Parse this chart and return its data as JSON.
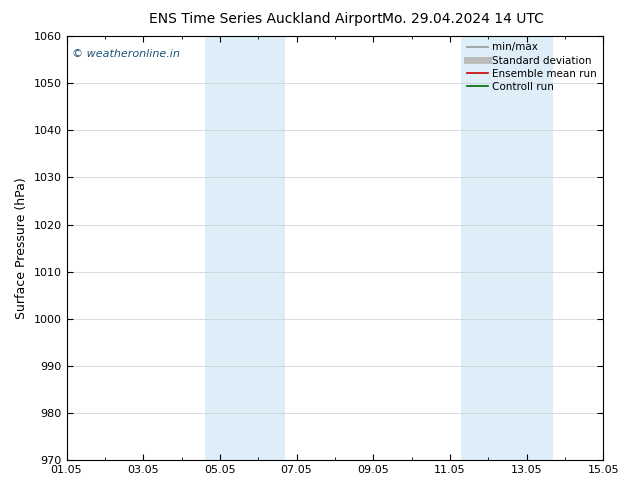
{
  "title_left": "ENS Time Series Auckland Airport",
  "title_right": "Mo. 29.04.2024 14 UTC",
  "ylabel": "Surface Pressure (hPa)",
  "ylim": [
    970,
    1060
  ],
  "yticks": [
    970,
    980,
    990,
    1000,
    1010,
    1020,
    1030,
    1040,
    1050,
    1060
  ],
  "xtick_labels": [
    "01.05",
    "03.05",
    "05.05",
    "07.05",
    "09.05",
    "11.05",
    "13.05",
    "15.05"
  ],
  "xtick_positions": [
    0,
    2,
    4,
    6,
    8,
    10,
    12,
    14
  ],
  "xlim": [
    0,
    14
  ],
  "shade_bands": [
    {
      "x_start": 3.6,
      "x_end": 4.3
    },
    {
      "x_start": 4.3,
      "x_end": 5.7
    },
    {
      "x_start": 10.3,
      "x_end": 11.7
    },
    {
      "x_start": 11.7,
      "x_end": 12.7
    }
  ],
  "shade_color": "#ddeef8",
  "watermark_text": "© weatheronline.in",
  "watermark_color": "#1a5276",
  "legend_entries": [
    {
      "label": "min/max",
      "color": "#999999",
      "lw": 1.2,
      "style": "-"
    },
    {
      "label": "Standard deviation",
      "color": "#bbbbbb",
      "lw": 5,
      "style": "-"
    },
    {
      "label": "Ensemble mean run",
      "color": "#cc0000",
      "lw": 1.2,
      "style": "-"
    },
    {
      "label": "Controll run",
      "color": "#006600",
      "lw": 1.2,
      "style": "-"
    }
  ],
  "bg_color": "#ffffff",
  "grid_color": "#cccccc",
  "title_fontsize": 10,
  "axis_label_fontsize": 9,
  "tick_fontsize": 8,
  "legend_fontsize": 7.5
}
